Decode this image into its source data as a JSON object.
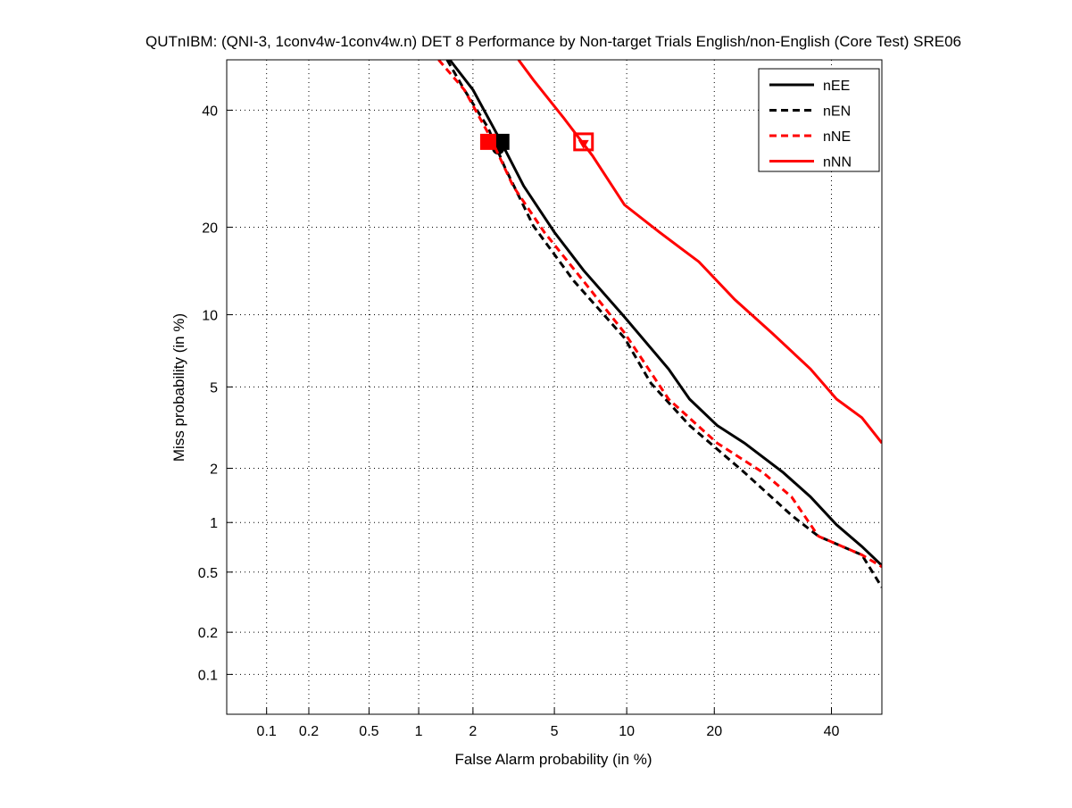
{
  "chart_data": {
    "type": "line",
    "scale": "normal-deviate (DET)",
    "title": "QUTnIBM: (QNI-3, 1conv4w-1conv4w.n) DET 8 Performance by Non-target Trials English/non-English (Core Test) SRE06",
    "xlabel": "False Alarm probability (in %)",
    "ylabel": "Miss probability (in %)",
    "xlim": [
      0.05,
      50
    ],
    "ylim": [
      0.05,
      50
    ],
    "xticks": [
      0.1,
      0.2,
      0.5,
      1,
      2,
      5,
      10,
      20,
      40
    ],
    "xtick_labels": [
      "0.1",
      "0.2",
      "0.5",
      "1",
      "2",
      "5",
      "10",
      "20",
      "40"
    ],
    "yticks": [
      0.1,
      0.2,
      0.5,
      1,
      2,
      5,
      10,
      20,
      40
    ],
    "ytick_labels": [
      "0.1",
      "0.2",
      "0.5",
      "1",
      "2",
      "5",
      "10",
      "20",
      "40"
    ],
    "grid": true,
    "legend_placement": "top-right",
    "series": [
      {
        "name": "nEE",
        "color": "#000000",
        "dash": false,
        "x": [
          1.5,
          2.0,
          2.7,
          3.6,
          5.0,
          6.7,
          9.8,
          14.2,
          16.7,
          20.4,
          24.5,
          31,
          36,
          41,
          46,
          50
        ],
        "y": [
          50,
          44,
          35,
          26.3,
          19.3,
          14.5,
          9.8,
          6.0,
          4.4,
          3.3,
          2.7,
          1.9,
          1.4,
          0.97,
          0.72,
          0.55
        ],
        "markers": [
          {
            "x": 2.8,
            "y": 34,
            "shape": "square-filled"
          },
          {
            "x": 2.7,
            "y": 32.8,
            "shape": "circle-filled"
          }
        ]
      },
      {
        "name": "nEN",
        "color": "#000000",
        "dash": true,
        "x": [
          1.45,
          1.8,
          2.4,
          2.9,
          4.0,
          6.1,
          9.8,
          12.3,
          16.7,
          24.5,
          32.5,
          37.5,
          46,
          50
        ],
        "y": [
          50,
          44,
          36.6,
          29.6,
          20.2,
          13.3,
          8.1,
          5.2,
          3.3,
          1.9,
          1.1,
          0.83,
          0.64,
          0.4
        ],
        "markers": []
      },
      {
        "name": "nNE",
        "color": "#ff0000",
        "dash": true,
        "x": [
          1.3,
          1.8,
          2.45,
          3.2,
          4.5,
          6.7,
          9.8,
          14.2,
          20.4,
          27.5,
          32.5,
          37.5,
          46,
          50
        ],
        "y": [
          50,
          44,
          35,
          26.3,
          19.3,
          13.3,
          8.5,
          4.4,
          2.7,
          1.9,
          1.4,
          0.83,
          0.64,
          0.54
        ],
        "markers": [
          {
            "x": 2.4,
            "y": 34,
            "shape": "square-filled"
          }
        ]
      },
      {
        "name": "nNN",
        "color": "#ff0000",
        "dash": false,
        "x": [
          3.4,
          4.0,
          5.5,
          7.3,
          9.8,
          13.2,
          17.9,
          23,
          29,
          36,
          41,
          46,
          50
        ],
        "y": [
          50,
          46,
          38.5,
          31.5,
          23.3,
          19.3,
          15.5,
          11.4,
          8.5,
          6.0,
          4.4,
          3.6,
          2.7
        ],
        "markers": [
          {
            "x": 6.7,
            "y": 34,
            "shape": "square-open"
          },
          {
            "x": 6.7,
            "y": 33.5,
            "shape": "triangle-filled"
          }
        ]
      }
    ]
  }
}
